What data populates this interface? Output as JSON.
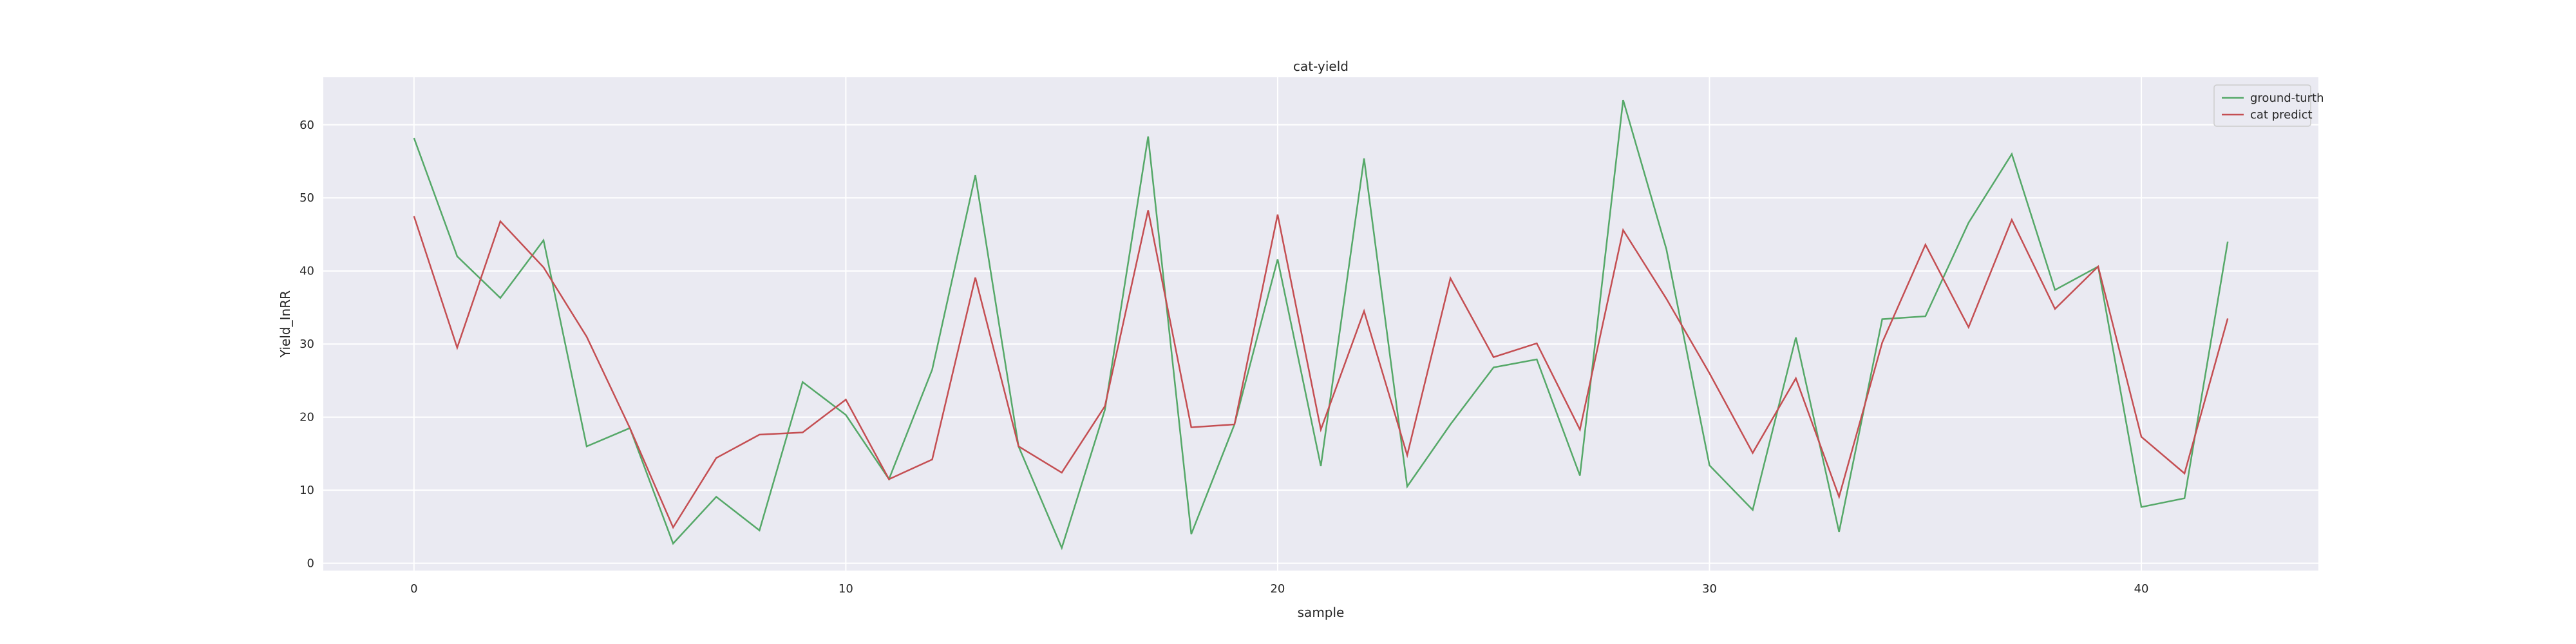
{
  "chart_data": {
    "type": "line",
    "title": "cat-yield",
    "xlabel": "sample",
    "ylabel": "Yield_InRR",
    "xlim": [
      -2.1,
      44.1
    ],
    "ylim": [
      -1.0,
      66.5
    ],
    "xticks": [
      0,
      10,
      20,
      30,
      40
    ],
    "yticks": [
      0,
      10,
      20,
      30,
      40,
      50,
      60
    ],
    "grid": true,
    "legend_position": "top-right",
    "x": [
      0,
      1,
      2,
      3,
      4,
      5,
      6,
      7,
      8,
      9,
      10,
      11,
      12,
      13,
      14,
      15,
      16,
      17,
      18,
      19,
      20,
      21,
      22,
      23,
      24,
      25,
      26,
      27,
      28,
      29,
      30,
      31,
      32,
      33,
      34,
      35,
      36,
      37,
      38,
      39,
      40,
      41,
      42
    ],
    "series": [
      {
        "name": "ground-turth",
        "color": "#55a868",
        "values": [
          58.2,
          42.0,
          36.3,
          44.2,
          16.0,
          18.5,
          2.7,
          9.1,
          4.5,
          24.8,
          20.3,
          11.5,
          26.5,
          53.1,
          16.0,
          2.1,
          21.0,
          58.4,
          4.0,
          19.0,
          41.6,
          13.3,
          55.4,
          10.5,
          19.0,
          26.8,
          27.9,
          12.0,
          63.4,
          43.0,
          13.4,
          7.3,
          30.9,
          4.3,
          33.4,
          33.8,
          46.6,
          56.0,
          37.4,
          40.6,
          7.7,
          8.9,
          44.0
        ]
      },
      {
        "name": "cat predict",
        "color": "#c44e52",
        "values": [
          47.5,
          29.5,
          46.8,
          40.5,
          31.0,
          18.5,
          4.9,
          14.4,
          17.6,
          17.9,
          22.4,
          11.5,
          14.2,
          39.1,
          16.0,
          12.4,
          21.5,
          48.3,
          18.6,
          19.0,
          47.7,
          18.3,
          34.5,
          14.8,
          39.0,
          28.2,
          30.1,
          18.3,
          45.6,
          36.2,
          26.0,
          15.1,
          25.3,
          9.1,
          30.2,
          43.6,
          32.3,
          47.0,
          34.8,
          40.6,
          17.3,
          12.3,
          33.5
        ]
      }
    ]
  }
}
